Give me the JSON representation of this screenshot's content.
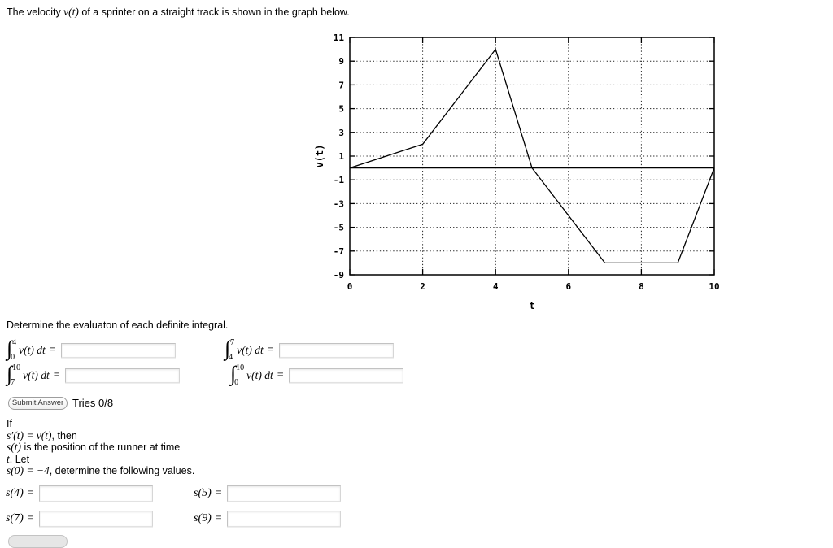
{
  "intro": {
    "prefix": "The velocity ",
    "math": "v(t)",
    "suffix": " of a sprinter on a straight track is shown in the graph below."
  },
  "chart_data": {
    "type": "line",
    "x": [
      0,
      2,
      4,
      5,
      7,
      9,
      10
    ],
    "y": [
      0,
      2,
      10,
      0,
      -8,
      -8,
      0
    ],
    "xlabel": "t",
    "ylabel": "v(t)",
    "xlim": [
      0,
      10
    ],
    "ylim": [
      -9,
      11
    ],
    "xticks": [
      0,
      2,
      4,
      6,
      8,
      10
    ],
    "yticks": [
      11,
      9,
      7,
      5,
      3,
      1,
      -1,
      -3,
      -5,
      -7,
      -9
    ],
    "grid": "dotted",
    "zero_line": true,
    "line_color": "#000000",
    "legend": "none",
    "title": ""
  },
  "integrals": {
    "prompt": "Determine the evaluaton of each definite integral.",
    "sign": "∫",
    "integrand": "v(t) dt",
    "equals": "=",
    "items": [
      {
        "lower": "0",
        "upper": "4"
      },
      {
        "lower": "4",
        "upper": "7"
      },
      {
        "lower": "7",
        "upper": "10"
      },
      {
        "lower": "0",
        "upper": "10"
      }
    ]
  },
  "submit": {
    "label": "Submit Answer",
    "tries": "Tries 0/8"
  },
  "position": {
    "line1": "If",
    "line2_math": "s′(t) = v(t)",
    "line2_text": ", then",
    "line3_math": "s(t)",
    "line3_text": " is the position of the runner at time",
    "line4_math": "t",
    "line4_text": ". Let",
    "line5_math": "s(0) = −4",
    "line5_text": ", determine the following values."
  },
  "answers": {
    "equals": "=",
    "items": [
      {
        "label": "s(4)"
      },
      {
        "label": "s(5)"
      },
      {
        "label": "s(7)"
      },
      {
        "label": "s(9)"
      }
    ]
  }
}
